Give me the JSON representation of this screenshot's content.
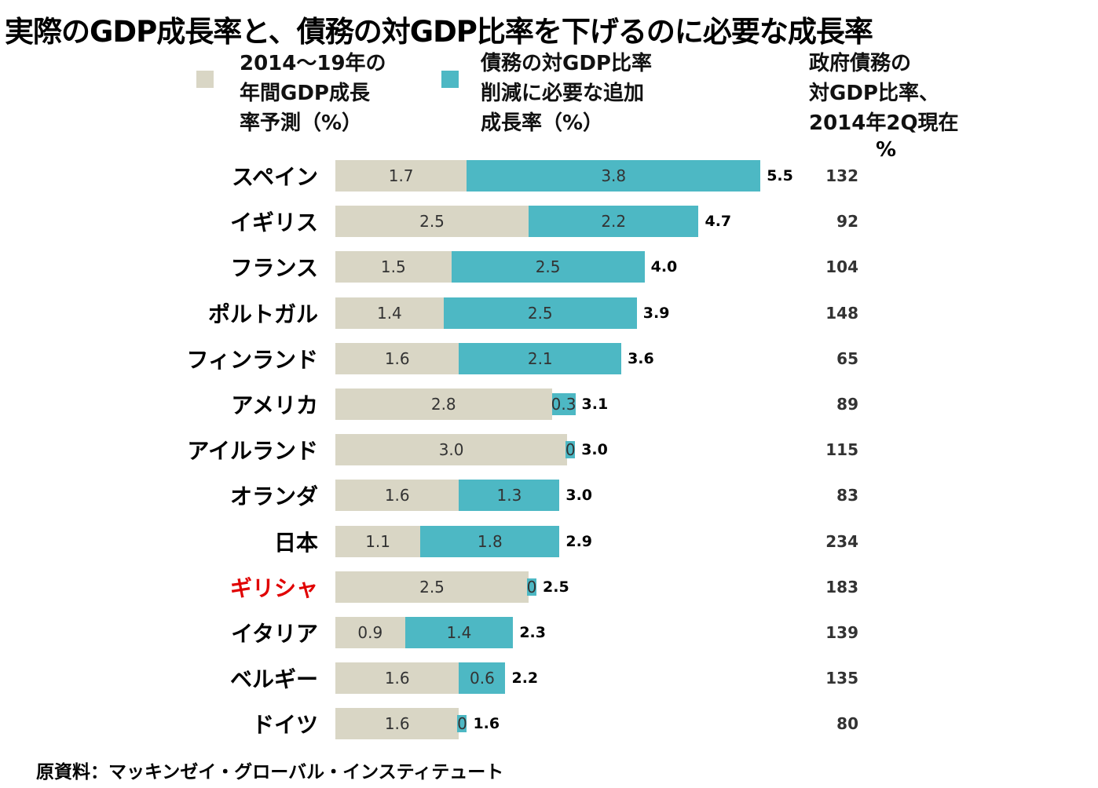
{
  "chart_data": {
    "type": "bar",
    "stacked": true,
    "orientation": "horizontal",
    "title": "実際のGDP成長率と、債務の対GDP比率を下げるのに必要な成長率",
    "categories": [
      "スペイン",
      "イギリス",
      "フランス",
      "ポルトガル",
      "フィンランド",
      "アメリカ",
      "アイルランド",
      "オランダ",
      "日本",
      "ギリシャ",
      "イタリア",
      "ベルギー",
      "ドイツ"
    ],
    "highlight_category": "ギリシャ",
    "series": [
      {
        "name": "2014～19年の年間GDP成長率予測（%）",
        "color": "#d9d6c5",
        "values": [
          1.7,
          2.5,
          1.5,
          1.4,
          1.6,
          2.8,
          3.0,
          1.6,
          1.1,
          2.5,
          0.9,
          1.6,
          1.6
        ]
      },
      {
        "name": "債務の対GDP比率削減に必要な追加成長率（%）",
        "color": "#4db8c4",
        "values": [
          3.8,
          2.2,
          2.5,
          2.5,
          2.1,
          0.3,
          0,
          1.3,
          1.8,
          0,
          1.4,
          0.6,
          0
        ]
      }
    ],
    "totals": [
      "5.5",
      "4.7",
      "4.0",
      "3.9",
      "3.6",
      "3.1",
      "3.0",
      "3.0",
      "2.9",
      "2.5",
      "2.3",
      "2.2",
      "1.6"
    ],
    "series_labels": [
      [
        "1.7",
        "2.5",
        "1.5",
        "1.4",
        "1.6",
        "2.8",
        "3.0",
        "1.6",
        "1.1",
        "2.5",
        "0.9",
        "1.6",
        "1.6"
      ],
      [
        "3.8",
        "2.2",
        "2.5",
        "2.5",
        "2.1",
        "0.3",
        "0",
        "1.3",
        "1.8",
        "0",
        "1.4",
        "0.6",
        "0"
      ]
    ],
    "debt_header": "政府債務の対GDP比率、2014年2Q現在",
    "debt_header_lines": [
      "政府債務の",
      "対GDP比率、",
      "2014年2Q現在"
    ],
    "debt_unit": "%",
    "debt_values": [
      "132",
      "92",
      "104",
      "148",
      "65",
      "89",
      "115",
      "83",
      "234",
      "183",
      "139",
      "135",
      "80"
    ],
    "legend_lines": [
      [
        "2014～19年の",
        "年間GDP成長",
        "率予測（%）"
      ],
      [
        "債務の対GDP比率",
        "削減に必要な追加",
        "成長率（%）"
      ]
    ],
    "highlight_color": "#e00000",
    "source": "原資料：マッキンゼイ・グローバル・インスティテュート"
  }
}
